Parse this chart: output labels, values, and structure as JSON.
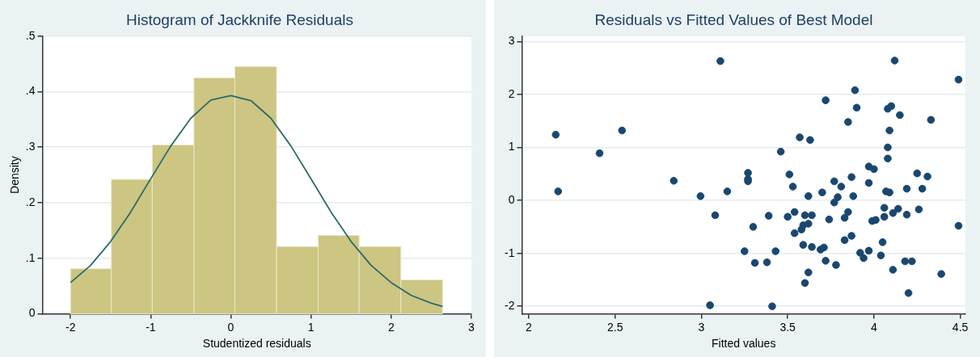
{
  "chart_data": [
    {
      "type": "histogram",
      "title": "Histogram of Jackknife Residuals",
      "xlabel": "Studentized residuals",
      "ylabel": "Density",
      "bins": [
        -2,
        -1.49,
        -0.98,
        -0.46,
        0.05,
        0.57,
        1.09,
        1.6,
        2.12,
        2.64
      ],
      "values": [
        0.081,
        0.242,
        0.304,
        0.425,
        0.445,
        0.121,
        0.141,
        0.121,
        0.061
      ],
      "color": "#cdc582",
      "series": [
        {
          "type": "line",
          "color": "#2a6b68",
          "x": [
            -2,
            -1.75,
            -1.5,
            -1.25,
            -1,
            -0.75,
            -0.5,
            -0.25,
            0,
            0.25,
            0.5,
            0.75,
            1,
            1.25,
            1.5,
            1.75,
            2,
            2.25,
            2.5,
            2.64
          ],
          "values": [
            0.056,
            0.087,
            0.13,
            0.183,
            0.243,
            0.302,
            0.352,
            0.385,
            0.393,
            0.384,
            0.352,
            0.302,
            0.243,
            0.183,
            0.13,
            0.087,
            0.056,
            0.033,
            0.019,
            0.013
          ]
        }
      ],
      "xlim": [
        -2.35,
        3
      ],
      "xticks": [
        -2,
        -1,
        0,
        1,
        2,
        3
      ],
      "ylim": [
        0,
        0.5
      ],
      "yticks": [
        0,
        {
          "value": 0.1,
          "label": ".1"
        },
        {
          "value": 0.2,
          "label": ".2"
        },
        {
          "value": 0.3,
          "label": ".3"
        },
        {
          "value": 0.4,
          "label": ".4"
        },
        {
          "value": 0.5,
          "label": ".5"
        }
      ],
      "grid": "y"
    },
    {
      "type": "scatter",
      "title": "Residuals vs Fitted Values of Best Model",
      "xlabel": "Fitted values",
      "x": [
        2.156,
        2.17,
        2.41,
        2.54,
        2.84,
        2.995,
        3.08,
        3.11,
        3.15,
        3.05,
        3.25,
        4.12,
        4.49,
        3.89,
        3.72,
        3.9,
        4.08,
        4.1,
        4.15,
        4.33,
        3.85,
        4.09,
        3.57,
        3.63,
        4.08,
        4.08,
        3.46,
        3.97,
        4.0,
        3.27,
        3.27,
        3.27,
        3.51,
        4.25,
        4.31,
        3.77,
        3.87,
        3.81,
        3.53,
        3.97,
        4.19,
        4.28,
        4.07,
        4.09,
        3.62,
        3.7,
        3.79,
        3.88,
        3.77,
        4.06,
        4.14,
        4.11,
        4.19,
        4.26,
        4.06,
        3.54,
        3.6,
        3.64,
        3.5,
        3.39,
        3.85,
        3.83,
        3.74,
        3.99,
        4.01,
        3.3,
        3.59,
        3.62,
        3.58,
        3.54,
        3.87,
        3.83,
        4.05,
        3.59,
        3.64,
        3.69,
        3.71,
        3.97,
        3.92,
        3.94,
        4.04,
        3.43,
        3.31,
        3.38,
        3.72,
        3.78,
        4.18,
        4.22,
        4.11,
        4.39,
        4.49,
        3.62,
        3.6,
        4.2,
        3.41
      ],
      "values": [
        1.24,
        0.17,
        0.89,
        1.32,
        0.37,
        0.08,
        -0.28,
        2.63,
        0.17,
        -1.98,
        -0.96,
        2.64,
        2.28,
        2.08,
        1.89,
        1.75,
        1.73,
        1.78,
        1.61,
        1.52,
        1.48,
        1.32,
        1.19,
        1.14,
        1.0,
        0.79,
        0.92,
        0.64,
        0.59,
        0.52,
        0.4,
        0.36,
        0.49,
        0.51,
        0.45,
        0.36,
        0.44,
        0.26,
        0.26,
        0.33,
        0.22,
        0.22,
        0.17,
        0.15,
        0.08,
        0.15,
        0.06,
        0.08,
        -0.04,
        -0.14,
        -0.16,
        -0.24,
        -0.27,
        -0.17,
        -0.31,
        -0.22,
        -0.28,
        -0.28,
        -0.31,
        -0.29,
        -0.22,
        -0.33,
        -0.36,
        -0.39,
        -0.37,
        -0.5,
        -0.47,
        -0.44,
        -0.55,
        -0.62,
        -0.67,
        -0.75,
        -0.79,
        -0.84,
        -0.88,
        -0.93,
        -0.89,
        -0.95,
        -0.99,
        -1.09,
        -1.04,
        -0.96,
        -1.18,
        -1.17,
        -1.14,
        -1.22,
        -1.15,
        -1.15,
        -1.31,
        -1.39,
        -0.48,
        -1.36,
        -1.56,
        -1.75,
        -2.0
      ],
      "color": "#1a476f",
      "marker": "circle",
      "xlim": [
        1.96,
        4.53
      ],
      "xticks": [
        2,
        2.5,
        3,
        3.5,
        4,
        4.5
      ],
      "ylim": [
        -2.14,
        3.1
      ],
      "yticks": [
        -2,
        -1,
        0,
        1,
        2,
        3
      ],
      "grid": "y"
    }
  ]
}
